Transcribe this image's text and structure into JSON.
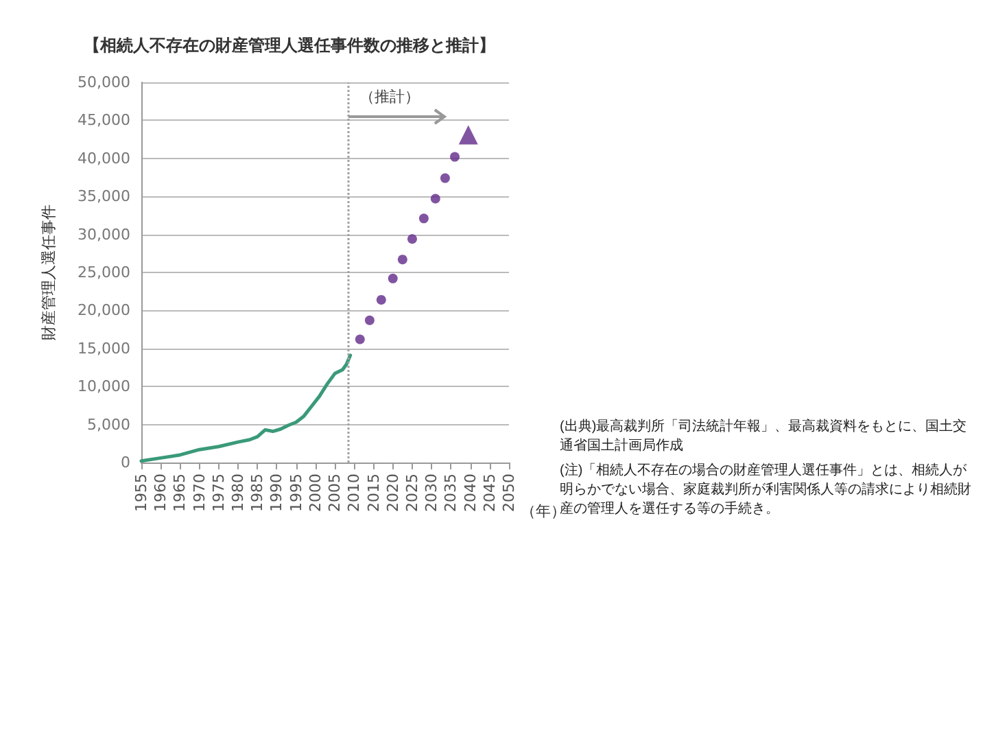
{
  "chart_data": {
    "type": "line",
    "title": "【相続人不存在の財産管理人選任事件数の推移と推計】",
    "ylabel": "財産管理人選任事件",
    "xlabel": "（年）",
    "xlim": [
      1955,
      2050
    ],
    "xticks": [
      1955,
      1960,
      1965,
      1970,
      1975,
      1980,
      1985,
      1990,
      1995,
      2000,
      2005,
      2010,
      2015,
      2020,
      2025,
      2030,
      2035,
      2040,
      2045,
      2050
    ],
    "ylim": [
      0,
      50000
    ],
    "yticks": [
      0,
      {
        "value": 5000,
        "label": "5,000"
      },
      {
        "value": 10000,
        "label": "10,000"
      },
      {
        "value": 15000,
        "label": "15,000"
      },
      {
        "value": 20000,
        "label": "20,000"
      },
      {
        "value": 25000,
        "label": "25,000"
      },
      {
        "value": 30000,
        "label": "30,000"
      },
      {
        "value": 35000,
        "label": "35,000"
      },
      {
        "value": 40000,
        "label": "40,000"
      },
      {
        "value": 45000,
        "label": "45,000"
      },
      {
        "value": 50000,
        "label": "50,000"
      }
    ],
    "grid": "y",
    "series": [
      {
        "color": "#3a9a78",
        "marker": "none",
        "x": [
          1955,
          1960,
          1965,
          1970,
          1975,
          1980,
          1983,
          1985,
          1987,
          1989,
          1991,
          1993,
          1995,
          1997,
          1999,
          2001,
          2003,
          2005,
          2007,
          2008,
          2009
        ],
        "values": [
          200,
          600,
          1000,
          1700,
          2100,
          2700,
          3000,
          3400,
          4300,
          4100,
          4400,
          4900,
          5300,
          6100,
          7400,
          8700,
          10300,
          11700,
          12200,
          12900,
          14100
        ]
      },
      {
        "type": "scatter",
        "color": "#62298a",
        "marker": "circle",
        "x": [
          2011.5,
          2014,
          2017,
          2020,
          2022.5,
          2025,
          2028,
          2031,
          2033.5,
          2036
        ],
        "values": [
          16200,
          18700,
          21400,
          24200,
          26700,
          29400,
          32100,
          34700,
          37400,
          40200
        ]
      },
      {
        "type": "scatter",
        "color": "#62298a",
        "marker": "triangle",
        "x": [
          2039.5
        ],
        "values": [
          43100
        ]
      }
    ],
    "ref_lines": [
      {
        "axis": "x",
        "value": 2008.5,
        "color": "#a0a0a0",
        "line_style": "dotted"
      }
    ],
    "annotations": [
      "（推計）",
      "(出典)最高裁判所「司法統計年報」、最高裁資料をもとに、国土交通省国土計画局作成",
      "(注)「相続人不存在の場合の財産管理人選任事件」とは、相続人が明らかでない場合、家庭裁判所が利害関係人等の請求により相続財産の管理人を選任する等の手続き。"
    ]
  }
}
